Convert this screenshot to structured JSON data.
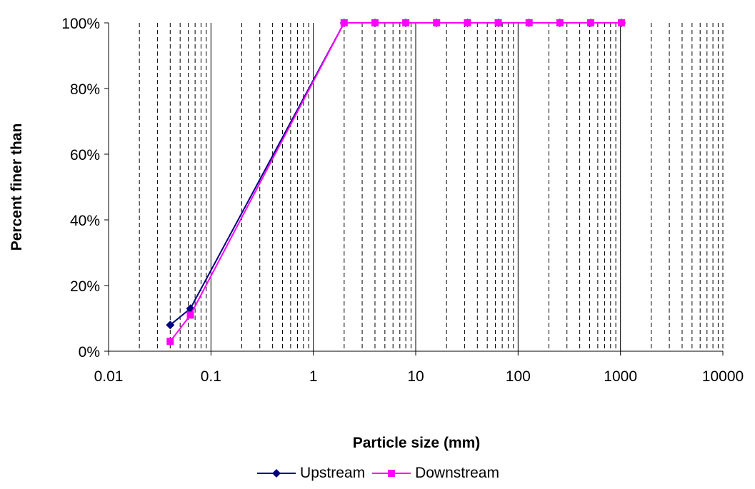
{
  "chart_data": {
    "type": "line",
    "xscale": "log",
    "xlim": [
      0.01,
      10000
    ],
    "ylim": [
      0,
      1
    ],
    "xticks": [
      "0.01",
      "0.1",
      "1",
      "10",
      "100",
      "1000",
      "10000"
    ],
    "yticks": [
      "0%",
      "20%",
      "40%",
      "60%",
      "80%",
      "100%"
    ],
    "xlabel": "Particle size (mm)",
    "ylabel": "Percent finer than",
    "grid": "vertical log gridlines (major solid, minor dashed)",
    "legend_position": "bottom",
    "series": [
      {
        "name": "Upstream",
        "color": "#000080",
        "marker": "diamond",
        "x": [
          0.04,
          0.063,
          2,
          4,
          8,
          16,
          32,
          64,
          128,
          256,
          512,
          1024
        ],
        "y": [
          0.08,
          0.13,
          1,
          1,
          1,
          1,
          1,
          1,
          1,
          1,
          1,
          1
        ]
      },
      {
        "name": "Downstream",
        "color": "#ff00ff",
        "marker": "square",
        "x": [
          0.04,
          0.063,
          2,
          4,
          8,
          16,
          32,
          64,
          128,
          256,
          512,
          1024
        ],
        "y": [
          0.03,
          0.11,
          1,
          1,
          1,
          1,
          1,
          1,
          1,
          1,
          1,
          1
        ]
      }
    ]
  }
}
